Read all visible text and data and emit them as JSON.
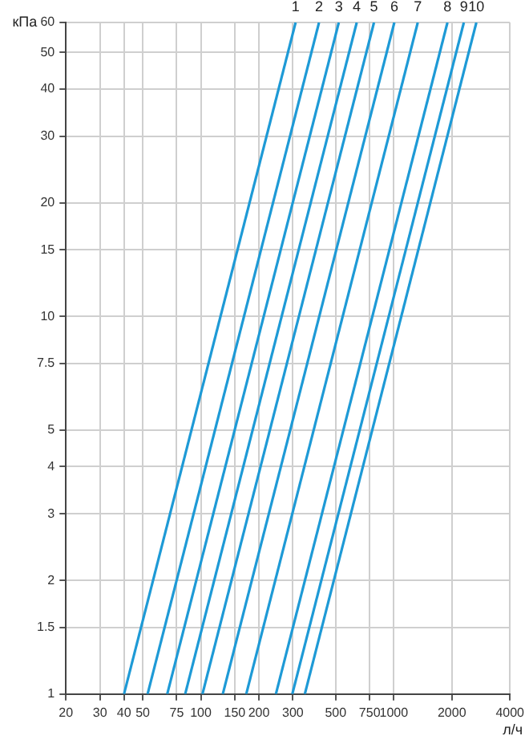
{
  "chart_data": {
    "type": "line",
    "xlabel": "л/ч",
    "ylabel": "кПа",
    "log": "xy",
    "grid": true,
    "marker": "none",
    "line_style": "solid",
    "xlim": [
      20,
      4000
    ],
    "ylim": [
      1,
      60
    ],
    "xticks": [
      20,
      30,
      40,
      50,
      75,
      100,
      150,
      200,
      300,
      500,
      750,
      1000,
      2000,
      4000
    ],
    "yticks": [
      1,
      1.5,
      2,
      3,
      4,
      5,
      7.5,
      10,
      15,
      20,
      30,
      40,
      50,
      60
    ],
    "series": [
      {
        "name": "1",
        "color": "#1e9ad6",
        "x": [
          40,
          310
        ],
        "values": [
          1,
          60
        ]
      },
      {
        "name": "2",
        "color": "#1e9ad6",
        "x": [
          53,
          410
        ],
        "values": [
          1,
          60
        ]
      },
      {
        "name": "3",
        "color": "#1e9ad6",
        "x": [
          67,
          519
        ],
        "values": [
          1,
          60
        ]
      },
      {
        "name": "4",
        "color": "#1e9ad6",
        "x": [
          83,
          643
        ],
        "values": [
          1,
          60
        ]
      },
      {
        "name": "5",
        "color": "#1e9ad6",
        "x": [
          102,
          790
        ],
        "values": [
          1,
          60
        ]
      },
      {
        "name": "6",
        "color": "#1e9ad6",
        "x": [
          130,
          1007
        ],
        "values": [
          1,
          60
        ]
      },
      {
        "name": "7",
        "color": "#1e9ad6",
        "x": [
          172,
          1332
        ],
        "values": [
          1,
          60
        ]
      },
      {
        "name": "8",
        "color": "#1e9ad6",
        "x": [
          245,
          1898
        ],
        "values": [
          1,
          60
        ]
      },
      {
        "name": "9",
        "color": "#1e9ad6",
        "x": [
          298,
          2308
        ],
        "values": [
          1,
          60
        ]
      },
      {
        "name": "10",
        "color": "#1e9ad6",
        "x": [
          346,
          2680
        ],
        "values": [
          1,
          60
        ]
      }
    ]
  }
}
